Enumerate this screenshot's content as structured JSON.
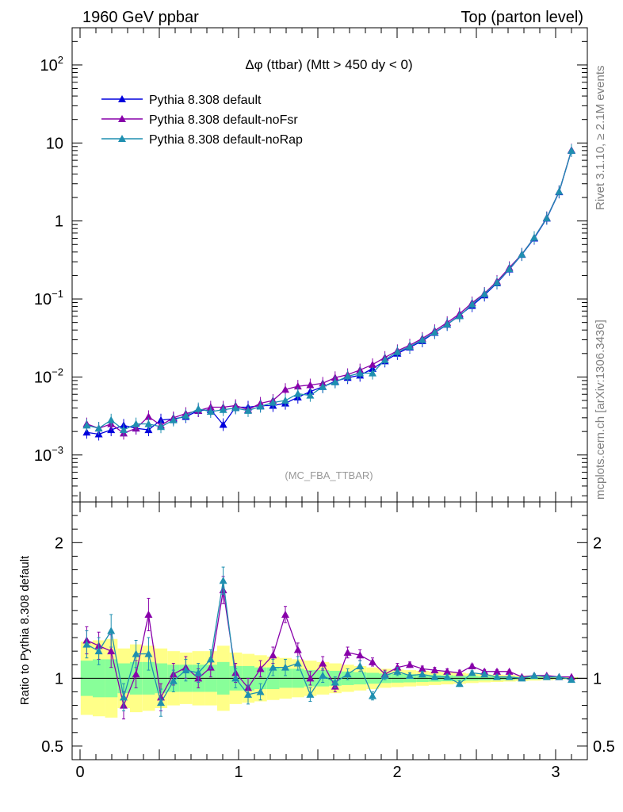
{
  "header": {
    "left": "1960 GeV ppbar",
    "right": "Top (parton level)"
  },
  "side_labels": {
    "rivet": "Rivet 3.1.10, ≥ 2.1M events",
    "mcplots": "mcplots.cern.ch [arXiv:1306.3436]"
  },
  "colors": {
    "default": "#0000dd",
    "noFsr": "#8800aa",
    "noRap": "#1f8fb0",
    "band_yellow": "#ffff88",
    "band_green": "#88ff99"
  },
  "chart_data": [
    {
      "type": "line",
      "title": "Δφ (ttbar) (Mtt > 450 dy < 0)",
      "watermark": "(MC_FBA_TTBAR)",
      "yscale": "log",
      "ylim": [
        0.00025,
        300
      ],
      "xlim": [
        -0.05,
        3.2
      ],
      "y_ticks": [
        {
          "value": 0.001,
          "base": "10",
          "exp": "−3"
        },
        {
          "value": 0.01,
          "base": "10",
          "exp": "−2"
        },
        {
          "value": 0.1,
          "base": "10",
          "exp": "−1"
        },
        {
          "value": 1,
          "base": "1",
          "exp": ""
        },
        {
          "value": 10,
          "base": "10",
          "exp": ""
        },
        {
          "value": 100,
          "base": "10",
          "exp": "2"
        }
      ],
      "legend_position": "top-left",
      "x": [
        0.042,
        0.118,
        0.196,
        0.275,
        0.353,
        0.432,
        0.51,
        0.589,
        0.667,
        0.746,
        0.824,
        0.903,
        0.981,
        1.06,
        1.138,
        1.217,
        1.295,
        1.374,
        1.452,
        1.531,
        1.609,
        1.688,
        1.766,
        1.845,
        1.923,
        2.002,
        2.08,
        2.159,
        2.237,
        2.316,
        2.394,
        2.473,
        2.551,
        2.63,
        2.708,
        2.787,
        2.865,
        2.944,
        3.022,
        3.1
      ],
      "series": [
        {
          "name": "Pythia 8.308 default",
          "color_key": "default",
          "values": [
            0.00195,
            0.00185,
            0.0021,
            0.0024,
            0.0022,
            0.0021,
            0.0028,
            0.0029,
            0.0031,
            0.0037,
            0.0038,
            0.00245,
            0.0041,
            0.0041,
            0.0043,
            0.0043,
            0.0046,
            0.0055,
            0.0065,
            0.0075,
            0.0088,
            0.0098,
            0.0105,
            0.0128,
            0.016,
            0.02,
            0.024,
            0.029,
            0.037,
            0.047,
            0.062,
            0.082,
            0.112,
            0.16,
            0.24,
            0.37,
            0.6,
            1.08,
            2.35,
            8.0
          ]
        },
        {
          "name": "Pythia 8.308 default-noFsr",
          "color_key": "noFsr",
          "values": [
            0.0025,
            0.0022,
            0.0025,
            0.0019,
            0.0022,
            0.0031,
            0.0024,
            0.003,
            0.0034,
            0.0037,
            0.0041,
            0.0041,
            0.0043,
            0.0038,
            0.0046,
            0.005,
            0.0069,
            0.0076,
            0.0079,
            0.0083,
            0.0098,
            0.0107,
            0.0123,
            0.0144,
            0.0178,
            0.0217,
            0.0255,
            0.0312,
            0.0392,
            0.0498,
            0.0645,
            0.0892,
            0.118,
            0.168,
            0.252,
            0.375,
            0.612,
            1.1,
            2.38,
            8.1
          ]
        },
        {
          "name": "Pythia 8.308 default-noRap",
          "color_key": "noRap",
          "values": [
            0.0024,
            0.0022,
            0.0028,
            0.0021,
            0.0025,
            0.0025,
            0.0023,
            0.0028,
            0.0032,
            0.0039,
            0.0036,
            0.0038,
            0.004,
            0.0037,
            0.0042,
            0.0047,
            0.005,
            0.0061,
            0.0058,
            0.0075,
            0.0086,
            0.0102,
            0.0112,
            0.0112,
            0.0166,
            0.021,
            0.0245,
            0.03,
            0.0375,
            0.0475,
            0.0605,
            0.0855,
            0.116,
            0.162,
            0.243,
            0.372,
            0.612,
            1.09,
            2.38,
            8.0
          ]
        }
      ],
      "legend": [
        {
          "label": "Pythia 8.308 default",
          "color_key": "default"
        },
        {
          "label": "Pythia 8.308 default-noFsr",
          "color_key": "noFsr"
        },
        {
          "label": "Pythia 8.308 default-noRap",
          "color_key": "noRap"
        }
      ]
    },
    {
      "type": "line",
      "ylabel": "Ratio to Pythia 8.308 default",
      "ylim": [
        0.4,
        2.3
      ],
      "xlim": [
        -0.05,
        3.2
      ],
      "reference_line": 1,
      "y_ticks": [
        {
          "value": 0.5,
          "label": "0.5"
        },
        {
          "value": 1,
          "label": "1"
        },
        {
          "value": 2,
          "label": "2"
        }
      ],
      "x_ticks": [
        {
          "value": 0,
          "label": "0"
        },
        {
          "value": 1,
          "label": "1"
        },
        {
          "value": 2,
          "label": "2"
        },
        {
          "value": 3,
          "label": "3"
        }
      ],
      "bands": {
        "yellow_half_width": [
          0.27,
          0.28,
          0.29,
          0.22,
          0.25,
          0.24,
          0.22,
          0.2,
          0.19,
          0.2,
          0.2,
          0.24,
          0.19,
          0.18,
          0.17,
          0.16,
          0.15,
          0.14,
          0.13,
          0.12,
          0.11,
          0.1,
          0.09,
          0.08,
          0.07,
          0.065,
          0.06,
          0.055,
          0.05,
          0.045,
          0.04,
          0.035,
          0.03,
          0.027,
          0.024,
          0.02,
          0.017,
          0.014,
          0.01,
          0.008
        ],
        "green_half_width": [
          0.13,
          0.14,
          0.14,
          0.11,
          0.12,
          0.12,
          0.11,
          0.1,
          0.1,
          0.1,
          0.1,
          0.12,
          0.09,
          0.09,
          0.08,
          0.08,
          0.07,
          0.07,
          0.06,
          0.06,
          0.055,
          0.05,
          0.045,
          0.04,
          0.035,
          0.032,
          0.03,
          0.027,
          0.025,
          0.022,
          0.02,
          0.017,
          0.015,
          0.013,
          0.012,
          0.01,
          0.008,
          0.007,
          0.005,
          0.004
        ]
      },
      "series": [
        {
          "name": "Pythia 8.308 default-noFsr",
          "color_key": "noFsr",
          "values": [
            1.28,
            1.24,
            1.2,
            0.8,
            1.03,
            1.47,
            0.86,
            1.03,
            1.08,
            1.0,
            1.08,
            1.65,
            1.04,
            0.93,
            1.07,
            1.17,
            1.47,
            1.21,
            1.0,
            1.11,
            0.94,
            1.19,
            1.17,
            1.12,
            1.03,
            1.08,
            1.1,
            1.07,
            1.06,
            1.05,
            1.04,
            1.09,
            1.05,
            1.05,
            1.05,
            1.01,
            1.02,
            1.02,
            1.01,
            1.01
          ],
          "errors": [
            0.1,
            0.1,
            0.12,
            0.1,
            0.1,
            0.12,
            0.1,
            0.08,
            0.08,
            0.07,
            0.07,
            0.1,
            0.07,
            0.07,
            0.06,
            0.06,
            0.06,
            0.05,
            0.05,
            0.05,
            0.04,
            0.04,
            0.04,
            0.03,
            0.03,
            0.03,
            0.02,
            0.02,
            0.02,
            0.02,
            0.02,
            0.015,
            0.015,
            0.012,
            0.01,
            0.01,
            0.01,
            0.008,
            0.006,
            0.005
          ]
        },
        {
          "name": "Pythia 8.308 default-noRap",
          "color_key": "noRap",
          "values": [
            1.25,
            1.2,
            1.35,
            0.86,
            1.18,
            1.18,
            0.82,
            0.98,
            1.06,
            1.04,
            1.14,
            1.72,
            1.0,
            0.88,
            0.9,
            1.08,
            1.08,
            1.11,
            0.88,
            1.02,
            0.97,
            1.03,
            1.09,
            0.87,
            1.02,
            1.05,
            1.02,
            1.03,
            1.01,
            1.01,
            0.96,
            1.04,
            1.03,
            1.01,
            1.01,
            1.0,
            1.02,
            1.01,
            1.01,
            0.99
          ],
          "errors": [
            0.1,
            0.1,
            0.12,
            0.1,
            0.1,
            0.12,
            0.1,
            0.08,
            0.08,
            0.07,
            0.07,
            0.1,
            0.07,
            0.07,
            0.06,
            0.06,
            0.06,
            0.05,
            0.05,
            0.05,
            0.04,
            0.04,
            0.04,
            0.03,
            0.03,
            0.03,
            0.02,
            0.02,
            0.02,
            0.02,
            0.02,
            0.015,
            0.015,
            0.012,
            0.01,
            0.01,
            0.01,
            0.008,
            0.006,
            0.005
          ]
        }
      ]
    }
  ]
}
